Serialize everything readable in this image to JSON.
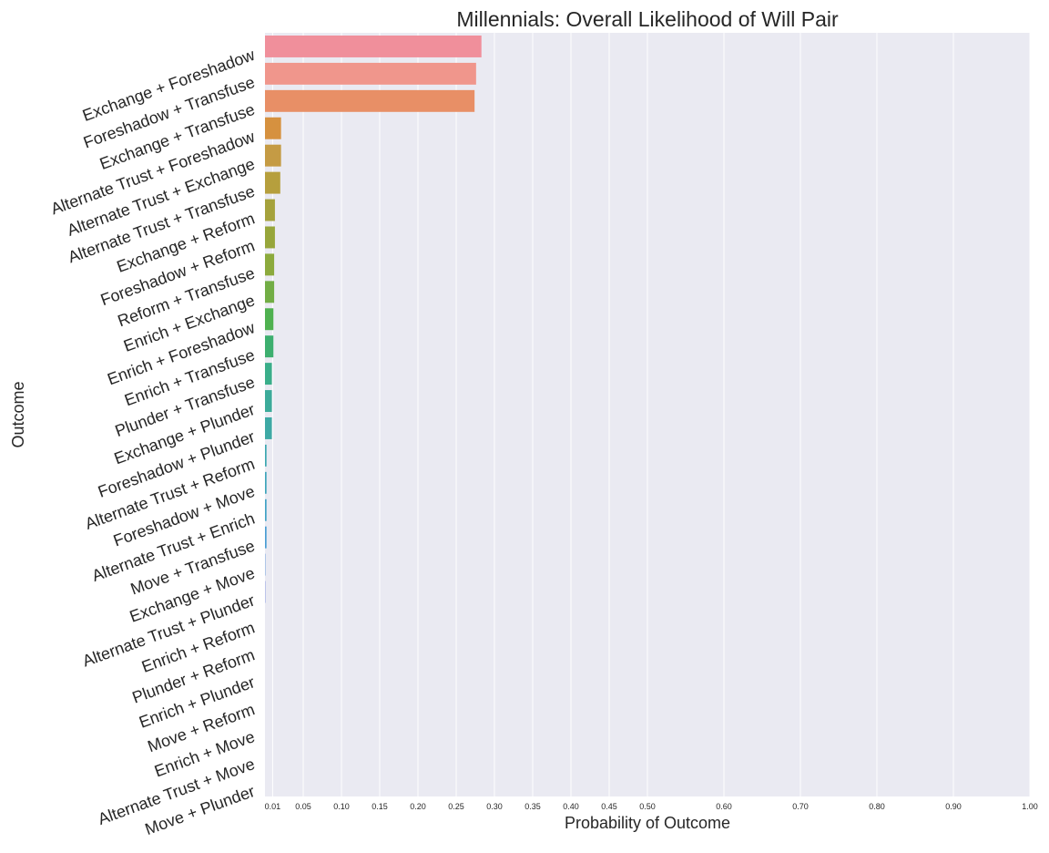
{
  "chart_data": {
    "type": "bar",
    "orientation": "horizontal",
    "title": "Millennials: Overall Likelihood of Will Pair",
    "xlabel": "Probability of Outcome",
    "ylabel": "Outcome",
    "xlim": [
      0,
      1.0
    ],
    "xticks": [
      0.01,
      0.05,
      0.1,
      0.15,
      0.2,
      0.25,
      0.3,
      0.35,
      0.4,
      0.45,
      0.5,
      0.6,
      0.7,
      0.8,
      0.9,
      1.0
    ],
    "xtick_labels": [
      "0.01",
      "0.05",
      "0.10",
      "0.15",
      "0.20",
      "0.25",
      "0.30",
      "0.35",
      "0.40",
      "0.45",
      "0.50",
      "0.60",
      "0.70",
      "0.80",
      "0.90",
      "1.00"
    ],
    "grid": true,
    "categories": [
      "Exchange + Foreshadow",
      "Foreshadow + Transfuse",
      "Exchange + Transfuse",
      "Alternate Trust + Foreshadow",
      "Alternate Trust + Exchange",
      "Alternate Trust + Transfuse",
      "Exchange + Reform",
      "Foreshadow + Reform",
      "Reform + Transfuse",
      "Enrich + Exchange",
      "Enrich + Foreshadow",
      "Enrich + Transfuse",
      "Plunder + Transfuse",
      "Exchange + Plunder",
      "Foreshadow + Plunder",
      "Alternate Trust + Reform",
      "Foreshadow + Move",
      "Alternate Trust + Enrich",
      "Move + Transfuse",
      "Exchange + Move",
      "Alternate Trust + Plunder",
      "Enrich + Reform",
      "Plunder + Reform",
      "Enrich + Plunder",
      "Move + Reform",
      "Enrich + Move",
      "Alternate Trust + Move",
      "Move + Plunder"
    ],
    "values": [
      0.283,
      0.276,
      0.274,
      0.021,
      0.021,
      0.02,
      0.013,
      0.013,
      0.012,
      0.012,
      0.011,
      0.011,
      0.009,
      0.009,
      0.009,
      0.002,
      0.002,
      0.002,
      0.002,
      0.0005,
      0.0005,
      0.0003,
      0.0003,
      0.0002,
      0.0002,
      0.0001,
      0.0001,
      0.0001
    ],
    "colors": [
      "#f08f9b",
      "#f0968c",
      "#e88f66",
      "#d6913f",
      "#c59b44",
      "#b69f3d",
      "#a5a23c",
      "#97a63b",
      "#8caa3d",
      "#72ad45",
      "#4fb150",
      "#3daf6f",
      "#3aae8a",
      "#3cab9a",
      "#3ea9a5",
      "#3ca7b0",
      "#3ea5bb",
      "#40a2c6",
      "#4a9dd3",
      "#5e96db",
      "#7d8fe0",
      "#9b86e3",
      "#b67de4",
      "#cb75dc",
      "#db6fd0",
      "#e66cc1",
      "#ee6dae",
      "#f0739f"
    ]
  }
}
